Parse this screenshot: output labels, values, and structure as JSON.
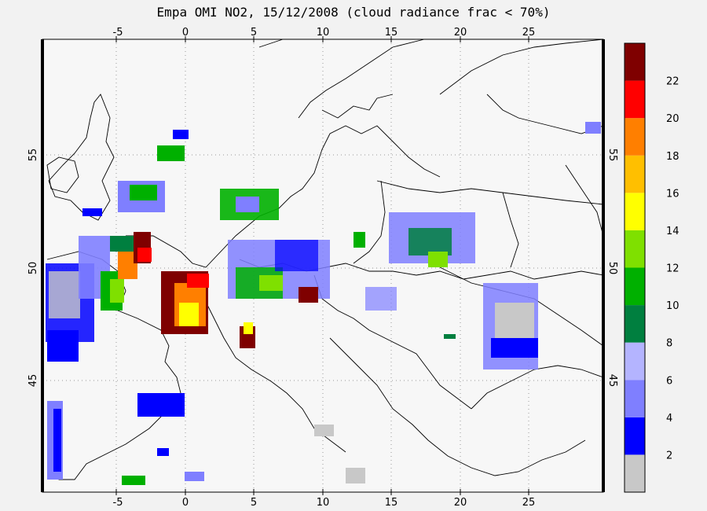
{
  "title": "Empa OMI NO2, 15/12/2008 (cloud radiance frac < 70%)",
  "map": {
    "lon_ticks": [
      "-5",
      "0",
      "5",
      "10",
      "15",
      "20",
      "25"
    ],
    "lat_ticks": [
      "45",
      "50",
      "55"
    ]
  },
  "colorbar": {
    "labels": [
      "2",
      "4",
      "6",
      "8",
      "10",
      "12",
      "14",
      "16",
      "18",
      "20",
      "22"
    ],
    "colors": [
      "#c8c8c8",
      "#0000ff",
      "#7f7fff",
      "#b4b4ff",
      "#007f3f",
      "#00b000",
      "#7fe000",
      "#ffff00",
      "#ffbf00",
      "#ff7f00",
      "#ff0000",
      "#7f0000"
    ]
  }
}
